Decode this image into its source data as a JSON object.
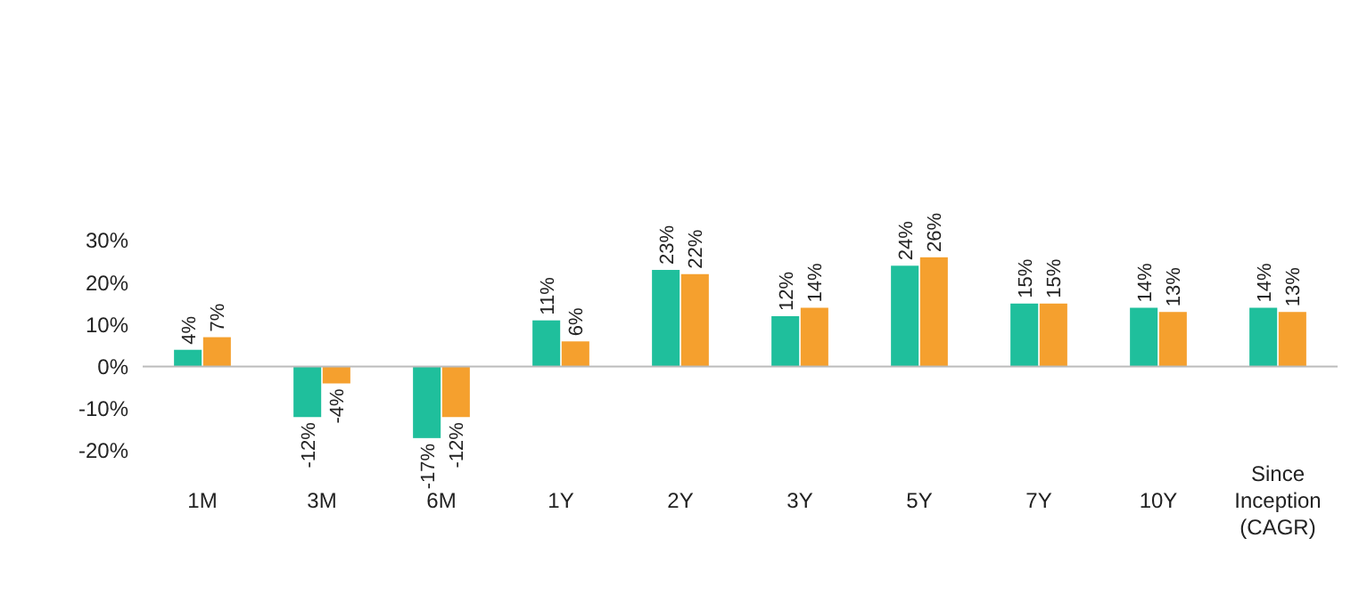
{
  "chart_data": {
    "type": "bar",
    "categories": [
      "1M",
      "3M",
      "6M",
      "1Y",
      "2Y",
      "3Y",
      "5Y",
      "7Y",
      "10Y",
      "Since Inception (CAGR)"
    ],
    "series": [
      {
        "color": "#1fbf9c",
        "values": [
          4,
          -12,
          -17,
          11,
          23,
          12,
          24,
          15,
          14,
          14
        ],
        "value_labels": [
          "4%",
          "-12%",
          "-17%",
          "11%",
          "23%",
          "12%",
          "24%",
          "15%",
          "14%",
          "14%"
        ]
      },
      {
        "color": "#f5a02e",
        "values": [
          7,
          -4,
          -12,
          6,
          22,
          14,
          26,
          15,
          13,
          13
        ],
        "value_labels": [
          "7%",
          "-4%",
          "-12%",
          "6%",
          "22%",
          "14%",
          "26%",
          "15%",
          "13%",
          "13%"
        ]
      }
    ],
    "ylim": [
      -20,
      30
    ],
    "yticks": [
      {
        "value": -20,
        "label": "-20%"
      },
      {
        "value": -10,
        "label": "-10%"
      },
      {
        "value": 0,
        "label": "0%"
      },
      {
        "value": 10,
        "label": "10%"
      },
      {
        "value": 20,
        "label": "20%"
      },
      {
        "value": 30,
        "label": "30%"
      }
    ]
  }
}
